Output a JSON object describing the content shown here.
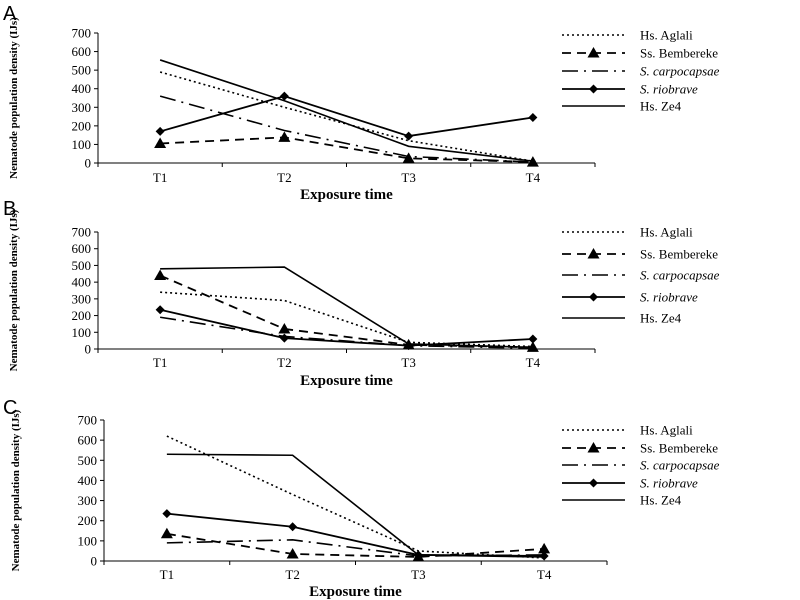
{
  "styles": {
    "Hs. Aglali": {
      "dash": "2,3",
      "width": 1.6,
      "marker": "none"
    },
    "Ss. Bembereke": {
      "dash": "9,6",
      "width": 1.8,
      "marker": "triangle"
    },
    "S. carpocapsae": {
      "dash": "16,6,2,6",
      "width": 1.6,
      "marker": "none"
    },
    "S. riobrave": {
      "dash": "",
      "width": 1.8,
      "marker": "diamond"
    },
    "Hs. Ze4": {
      "dash": "",
      "width": 1.6,
      "marker": "none"
    }
  },
  "chart_data": [
    {
      "type": "line",
      "panel_label": "A",
      "xlabel": "Exposure time",
      "ylabel": "Nematode population density (IJs)",
      "categories": [
        "T1",
        "T2",
        "T3",
        "T4"
      ],
      "ylim": [
        0,
        700
      ],
      "yticks": [
        0,
        100,
        200,
        300,
        400,
        500,
        600,
        700
      ],
      "legend_position": "right",
      "series": [
        {
          "name": "Hs. Aglali",
          "italic": false,
          "values": [
            490,
            300,
            120,
            10
          ]
        },
        {
          "name": "Ss. Bembereke",
          "italic": false,
          "values": [
            105,
            138,
            25,
            5
          ]
        },
        {
          "name": "S. carpocapsae",
          "italic": true,
          "values": [
            360,
            175,
            35,
            5
          ]
        },
        {
          "name": "S. riobrave",
          "italic": true,
          "values": [
            170,
            360,
            145,
            245
          ]
        },
        {
          "name": "Hs. Ze4",
          "italic": false,
          "values": [
            555,
            335,
            90,
            10
          ]
        }
      ]
    },
    {
      "type": "line",
      "panel_label": "B",
      "xlabel": "Exposure time",
      "ylabel": "Nematode population density (IJs)",
      "categories": [
        "T1",
        "T2",
        "T3",
        "T4"
      ],
      "ylim": [
        0,
        700
      ],
      "yticks": [
        0,
        100,
        200,
        300,
        400,
        500,
        600,
        700
      ],
      "legend_position": "right",
      "series": [
        {
          "name": "Hs. Aglali",
          "italic": false,
          "values": [
            340,
            290,
            40,
            15
          ]
        },
        {
          "name": "Ss. Bembereke",
          "italic": false,
          "values": [
            440,
            120,
            25,
            10
          ]
        },
        {
          "name": "S. carpocapsae",
          "italic": true,
          "values": [
            190,
            75,
            20,
            5
          ]
        },
        {
          "name": "S. riobrave",
          "italic": true,
          "values": [
            235,
            65,
            20,
            60
          ]
        },
        {
          "name": "Hs. Ze4",
          "italic": false,
          "values": [
            480,
            490,
            30,
            10
          ]
        }
      ]
    },
    {
      "type": "line",
      "panel_label": "C",
      "xlabel": "Exposure time",
      "ylabel": "Nematode population density (IJs)",
      "categories": [
        "T1",
        "T2",
        "T3",
        "T4"
      ],
      "ylim": [
        0,
        700
      ],
      "yticks": [
        0,
        100,
        200,
        300,
        400,
        500,
        600,
        700
      ],
      "legend_position": "right",
      "series": [
        {
          "name": "Hs. Aglali",
          "italic": false,
          "values": [
            620,
            330,
            50,
            15
          ]
        },
        {
          "name": "Ss. Bembereke",
          "italic": false,
          "values": [
            135,
            35,
            20,
            60
          ]
        },
        {
          "name": "S. carpocapsae",
          "italic": true,
          "values": [
            90,
            105,
            25,
            30
          ]
        },
        {
          "name": "S. riobrave",
          "italic": true,
          "values": [
            235,
            170,
            30,
            25
          ]
        },
        {
          "name": "Hs. Ze4",
          "italic": false,
          "values": [
            530,
            525,
            30,
            20
          ]
        }
      ]
    }
  ]
}
